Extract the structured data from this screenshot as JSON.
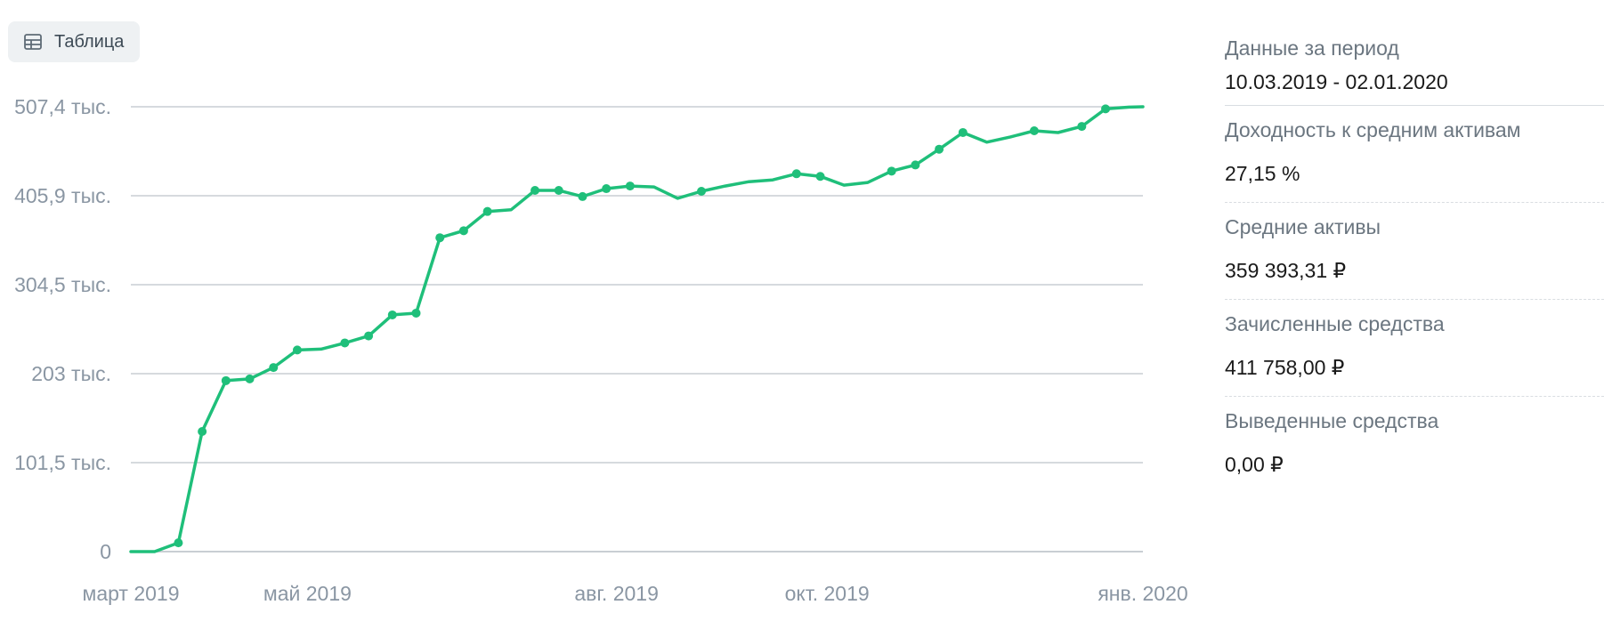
{
  "toolbar": {
    "table_label": "Таблица",
    "table_icon": "table-icon"
  },
  "colors": {
    "line": "#1fbf7a",
    "grid": "#c9ced3",
    "axis_text": "#8a96a3"
  },
  "chart_data": {
    "type": "line",
    "y_ticks": [
      "0",
      "101,5 тыс.",
      "203 тыс.",
      "304,5 тыс.",
      "405,9 тыс.",
      "507,4 тыс."
    ],
    "y_tick_values": [
      0,
      101500,
      203000,
      304500,
      405900,
      507400
    ],
    "ylim": [
      0,
      507400
    ],
    "x_ticks": [
      "март 2019",
      "май 2019",
      "авг. 2019",
      "окт. 2019",
      "янв. 2020"
    ],
    "x_tick_dates": [
      "2019-03-10",
      "2019-05-01",
      "2019-07-31",
      "2019-10-01",
      "2020-01-02"
    ],
    "xlim": [
      "2019-03-10",
      "2020-01-02"
    ],
    "grid": true,
    "series": [
      {
        "points": [
          [
            "2019-03-10",
            0,
            false
          ],
          [
            "2019-03-17",
            0,
            false
          ],
          [
            "2019-03-24",
            10000,
            true
          ],
          [
            "2019-03-31",
            137000,
            true
          ],
          [
            "2019-04-07",
            195000,
            true
          ],
          [
            "2019-04-14",
            197000,
            true
          ],
          [
            "2019-04-21",
            210000,
            true
          ],
          [
            "2019-04-28",
            230000,
            true
          ],
          [
            "2019-05-05",
            231000,
            false
          ],
          [
            "2019-05-12",
            238000,
            true
          ],
          [
            "2019-05-19",
            246000,
            true
          ],
          [
            "2019-05-26",
            270000,
            true
          ],
          [
            "2019-06-02",
            272000,
            true
          ],
          [
            "2019-06-09",
            358000,
            true
          ],
          [
            "2019-06-16",
            366000,
            true
          ],
          [
            "2019-06-23",
            388000,
            true
          ],
          [
            "2019-06-30",
            390000,
            false
          ],
          [
            "2019-07-07",
            412000,
            true
          ],
          [
            "2019-07-14",
            412000,
            true
          ],
          [
            "2019-07-21",
            405000,
            true
          ],
          [
            "2019-07-28",
            414000,
            true
          ],
          [
            "2019-08-04",
            417000,
            true
          ],
          [
            "2019-08-11",
            416000,
            false
          ],
          [
            "2019-08-18",
            403000,
            false
          ],
          [
            "2019-08-25",
            411000,
            true
          ],
          [
            "2019-09-01",
            417000,
            false
          ],
          [
            "2019-09-08",
            422000,
            false
          ],
          [
            "2019-09-15",
            424000,
            false
          ],
          [
            "2019-09-22",
            431000,
            true
          ],
          [
            "2019-09-29",
            428000,
            true
          ],
          [
            "2019-10-06",
            418000,
            false
          ],
          [
            "2019-10-13",
            421000,
            false
          ],
          [
            "2019-10-20",
            434000,
            true
          ],
          [
            "2019-10-27",
            441000,
            true
          ],
          [
            "2019-11-03",
            459000,
            true
          ],
          [
            "2019-11-10",
            478000,
            true
          ],
          [
            "2019-11-17",
            467000,
            false
          ],
          [
            "2019-11-24",
            473000,
            false
          ],
          [
            "2019-12-01",
            480000,
            true
          ],
          [
            "2019-12-08",
            478000,
            false
          ],
          [
            "2019-12-15",
            485000,
            true
          ],
          [
            "2019-12-22",
            505000,
            true
          ],
          [
            "2019-12-29",
            507000,
            false
          ],
          [
            "2020-01-02",
            507400,
            false
          ]
        ]
      }
    ]
  },
  "stats": [
    {
      "label": "Данные за период",
      "value": "10.03.2019 - 02.01.2020"
    },
    {
      "label": "Доходность к средним активам",
      "value": "27,15 %"
    },
    {
      "label": "Средние активы",
      "value": "359 393,31 ₽"
    },
    {
      "label": "Зачисленные средства",
      "value": "411 758,00 ₽"
    },
    {
      "label": "Выведенные средства",
      "value": "0,00 ₽"
    }
  ]
}
